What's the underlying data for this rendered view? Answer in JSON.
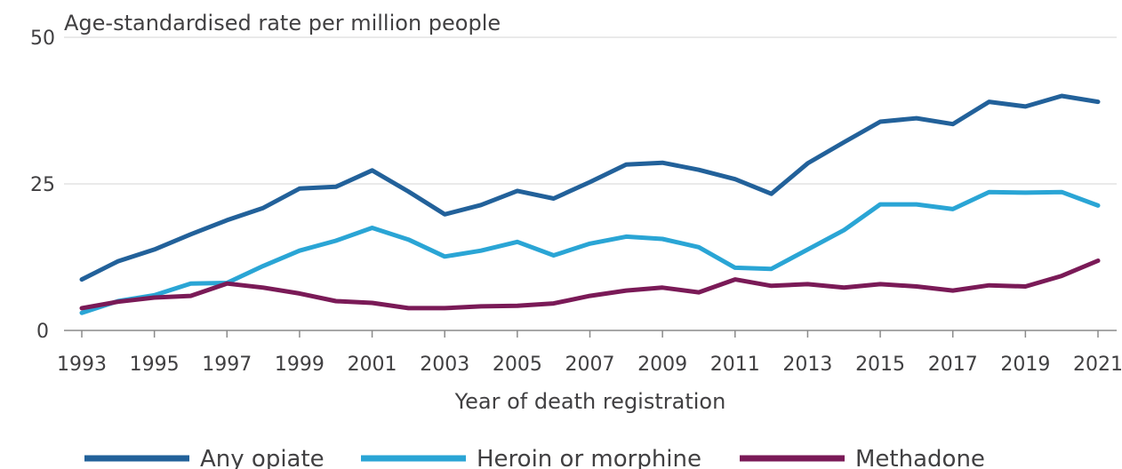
{
  "chart_data": {
    "type": "line",
    "title": "",
    "ylabel": "Age-standardised rate per million people",
    "xlabel": "Year of death registration",
    "x": [
      1993,
      1994,
      1995,
      1996,
      1997,
      1998,
      1999,
      2000,
      2001,
      2002,
      2003,
      2004,
      2005,
      2006,
      2007,
      2008,
      2009,
      2010,
      2011,
      2012,
      2013,
      2014,
      2015,
      2016,
      2017,
      2018,
      2019,
      2020,
      2021
    ],
    "xticks": [
      "1993",
      "1995",
      "1997",
      "1999",
      "2001",
      "2003",
      "2005",
      "2007",
      "2009",
      "2011",
      "2013",
      "2015",
      "2017",
      "2019",
      "2021"
    ],
    "yticks": [
      "0",
      "25",
      "50"
    ],
    "ylim": [
      0,
      50
    ],
    "grid": "horizontal",
    "legend_position": "bottom",
    "series": [
      {
        "name": "Any opiate",
        "color": "#22619a",
        "values": [
          8.7,
          11.8,
          13.8,
          16.4,
          18.8,
          20.9,
          24.2,
          24.5,
          27.3,
          23.7,
          19.8,
          21.4,
          23.8,
          22.5,
          25.3,
          28.3,
          28.6,
          27.4,
          25.8,
          23.3,
          28.5,
          32.1,
          35.6,
          36.2,
          35.2,
          39.0,
          38.2,
          40.0,
          39.0
        ]
      },
      {
        "name": "Heroin or morphine",
        "color": "#2aa5d5",
        "values": [
          3.0,
          5.0,
          6.0,
          8.0,
          8.1,
          11.0,
          13.6,
          15.3,
          17.5,
          15.5,
          12.6,
          13.6,
          15.1,
          12.8,
          14.8,
          16.0,
          15.6,
          14.2,
          10.7,
          10.5,
          13.8,
          17.1,
          21.5,
          21.5,
          20.7,
          23.6,
          23.5,
          23.6,
          21.3
        ]
      },
      {
        "name": "Methadone",
        "color": "#7a1a57",
        "values": [
          3.8,
          4.9,
          5.6,
          5.9,
          8.0,
          7.3,
          6.3,
          5.0,
          4.7,
          3.8,
          3.8,
          4.1,
          4.2,
          4.6,
          5.9,
          6.8,
          7.3,
          6.5,
          8.7,
          7.6,
          7.9,
          7.3,
          7.9,
          7.5,
          6.8,
          7.7,
          7.5,
          9.3,
          11.9
        ]
      }
    ]
  }
}
